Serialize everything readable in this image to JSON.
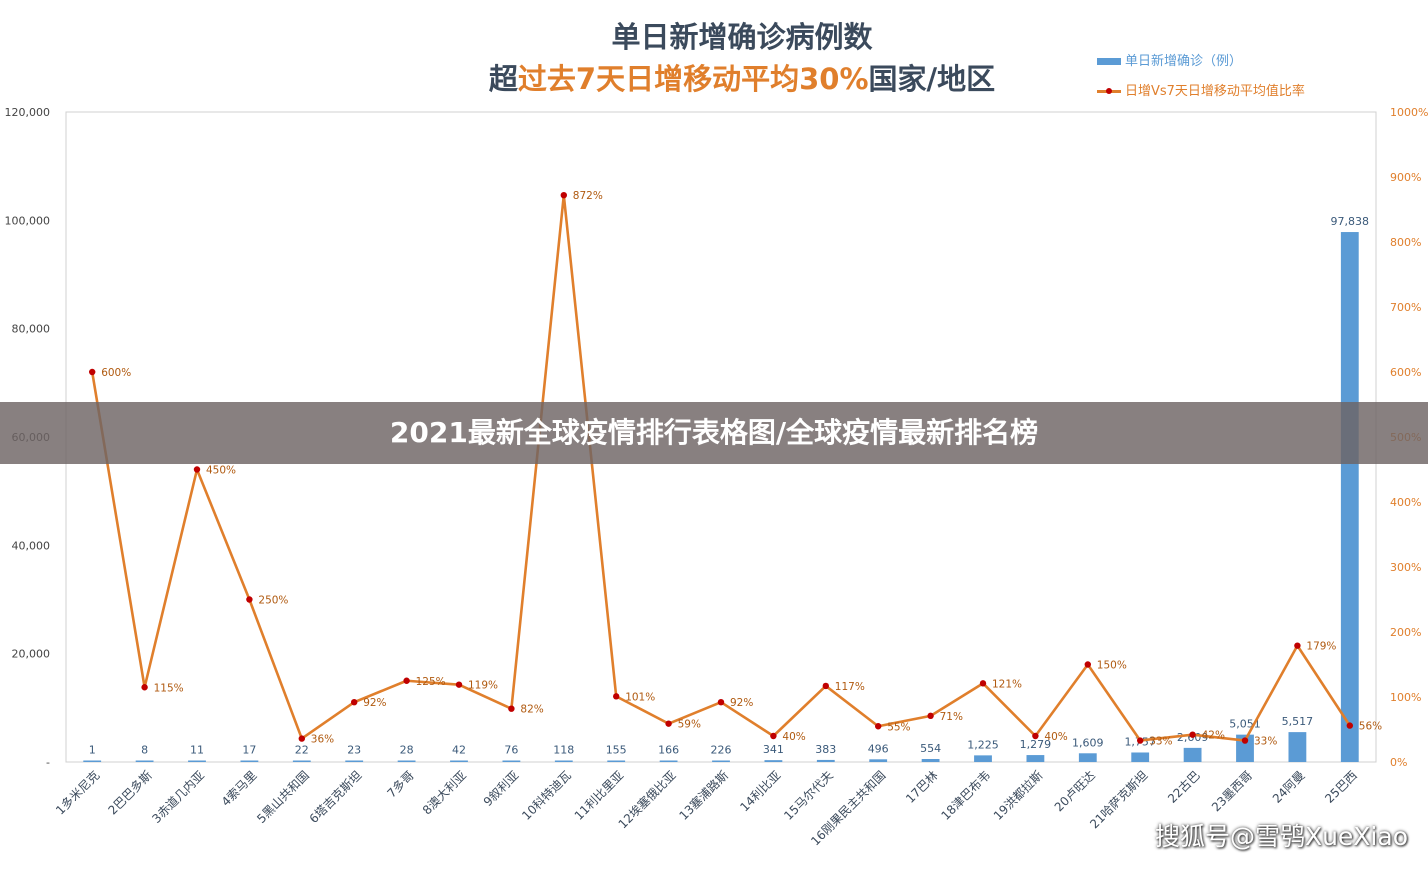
{
  "header": {
    "title_line1": "单日新增确诊病例数",
    "title_line2_pre": "超",
    "title_line2_highlight": "过去7天日增移动平均30%",
    "title_line2_post": "国家/地区"
  },
  "banner": {
    "text": "2021最新全球疫情排行表格图/全球疫情最新排名榜"
  },
  "watermark": {
    "text": "搜狐号@雪鸮XueXiao"
  },
  "colors": {
    "bar": "#5b9bd5",
    "line": "#e07f2c",
    "marker": "#c00000",
    "left_axis_text": "#444444",
    "right_axis_text": "#e07f2c"
  },
  "chart_data": {
    "type": "bar",
    "legend": {
      "position": "top-right",
      "items": [
        "单日新增确诊（例）",
        "日增Vs7天日增移动平均值比率"
      ]
    },
    "grid": false,
    "categories": [
      "1多米尼克",
      "2巴巴多斯",
      "3赤道几内亚",
      "4索马里",
      "5黑山共和国",
      "6塔吉克斯坦",
      "7多哥",
      "8澳大利亚",
      "9叙利亚",
      "10科特迪瓦",
      "11利比里亚",
      "12埃塞俄比亚",
      "13塞浦路斯",
      "14利比亚",
      "15马尔代夫",
      "16刚果民主共和国",
      "17巴林",
      "18津巴布韦",
      "19洪都拉斯",
      "20卢旺达",
      "21哈萨克斯坦",
      "22古巴",
      "23墨西哥",
      "24阿曼",
      "25巴西"
    ],
    "y_left": {
      "ylim": [
        0,
        120000
      ],
      "ticks": [
        "-",
        "20,000",
        "40,000",
        "60,000",
        "80,000",
        "100,000",
        "120,000"
      ],
      "tick_values": [
        0,
        20000,
        40000,
        60000,
        80000,
        100000,
        120000
      ]
    },
    "y_right": {
      "ylim": [
        0,
        1000
      ],
      "ticks": [
        "0%",
        "100%",
        "200%",
        "300%",
        "400%",
        "500%",
        "600%",
        "700%",
        "800%",
        "900%",
        "1000%"
      ],
      "tick_values": [
        0,
        100,
        200,
        300,
        400,
        500,
        600,
        700,
        800,
        900,
        1000
      ]
    },
    "series": [
      {
        "name": "单日新增确诊（例）",
        "type": "bar",
        "axis": "left",
        "values": [
          1,
          8,
          11,
          17,
          22,
          23,
          28,
          42,
          76,
          118,
          155,
          166,
          226,
          341,
          383,
          496,
          554,
          1225,
          1279,
          1609,
          1757,
          2609,
          5051,
          5517,
          97838
        ],
        "labels": [
          "1",
          "8",
          "11",
          "17",
          "22",
          "23",
          "28",
          "42",
          "76",
          "118",
          "155",
          "166",
          "226",
          "341",
          "383",
          "496",
          "554",
          "1,225",
          "1,279",
          "1,609",
          "1,757",
          "2,609",
          "5,051",
          "5,517",
          "97,838"
        ]
      },
      {
        "name": "日增Vs7天日增移动平均值比率",
        "type": "line",
        "axis": "right",
        "values": [
          600,
          115,
          450,
          250,
          36,
          92,
          125,
          119,
          82,
          872,
          101,
          59,
          92,
          40,
          117,
          55,
          71,
          121,
          40,
          150,
          33,
          42,
          33,
          179,
          56
        ],
        "labels": [
          "600%",
          "115%",
          "450%",
          "250%",
          "36%",
          "92%",
          "125%",
          "119%",
          "82%",
          "872%",
          "101%",
          "59%",
          "92%",
          "40%",
          "117%",
          "55%",
          "71%",
          "121%",
          "40%",
          "150%",
          "33%",
          "42%",
          "33%",
          "179%",
          "56%"
        ]
      }
    ]
  }
}
